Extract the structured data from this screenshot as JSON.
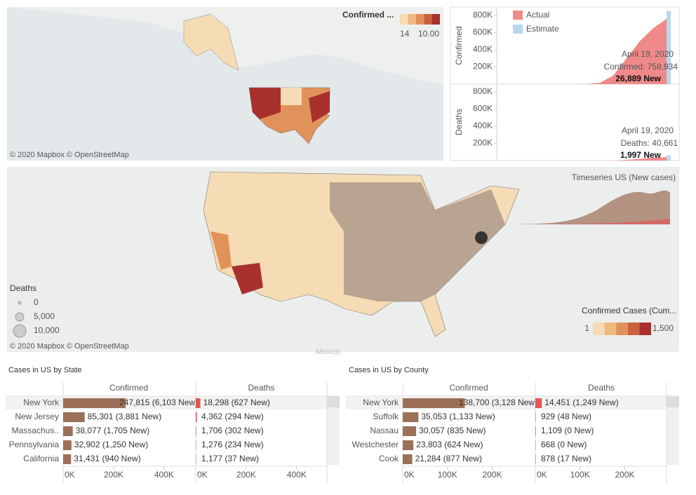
{
  "top_map": {
    "legend_title": "Confirmed ...",
    "legend_min": "14",
    "legend_max": "10.00",
    "colors": [
      "#f5dcb4",
      "#eeb97e",
      "#e0925a",
      "#c9613f",
      "#a8312e"
    ],
    "attribution": "© 2020 Mapbox  © OpenStreetMap"
  },
  "timeseries": {
    "legend": [
      {
        "name": "Actual",
        "color": "#f08a8a"
      },
      {
        "name": "Estimate",
        "color": "#b9d7ee"
      }
    ],
    "charts": [
      {
        "axis_label": "Confirmed",
        "ylim": [
          0,
          880000
        ],
        "yticks": [
          {
            "value": 200000,
            "label": "200K"
          },
          {
            "value": 400000,
            "label": "400K"
          },
          {
            "value": 600000,
            "label": "600K"
          },
          {
            "value": 800000,
            "label": "800K"
          }
        ],
        "categories": [
          null,
          null,
          null,
          null,
          null,
          null,
          null,
          null,
          null,
          null,
          null,
          null,
          null
        ],
        "values": [
          0,
          0,
          0,
          0,
          100,
          500,
          2000,
          15000,
          100000,
          300000,
          500000,
          650000,
          758934
        ],
        "estimate": 850000,
        "tooltip": {
          "date": "April 19, 2020",
          "total": "Confirmed: 758,934",
          "new": "26,889 New"
        }
      },
      {
        "axis_label": "Deaths",
        "ylim": [
          0,
          880000
        ],
        "yticks": [
          {
            "value": 200000,
            "label": "200K"
          },
          {
            "value": 400000,
            "label": "400K"
          },
          {
            "value": 600000,
            "label": "600K"
          },
          {
            "value": 800000,
            "label": "800K"
          }
        ],
        "categories": [
          null,
          null,
          null,
          null,
          null,
          null,
          null,
          null,
          null,
          null,
          null,
          null,
          null
        ],
        "values": [
          0,
          0,
          0,
          0,
          0,
          0,
          10,
          100,
          1500,
          8000,
          20000,
          32000,
          40661
        ],
        "estimate": 60000,
        "tooltip": {
          "date": "April 19, 2020",
          "total": "Deaths: 40,661",
          "new": "1,997 New"
        }
      }
    ]
  },
  "bottom_map": {
    "timeseries_title": "Timeseries US (New cases)",
    "size_legend": {
      "title": "Deaths",
      "labels": [
        "0",
        "5,000",
        "10,000"
      ]
    },
    "color_legend": {
      "title": "Confirmed Cases (Cum...",
      "min": "1",
      "max": "1,500"
    },
    "attribution": "© 2020 Mapbox  © OpenStreetMap",
    "place": "Mexico"
  },
  "tables": [
    {
      "title": "Cases in US by State",
      "columns": [
        "Confirmed",
        "Deaths"
      ],
      "xlim": [
        0,
        520000
      ],
      "xticks": [
        {
          "value": 0,
          "label": "0K"
        },
        {
          "value": 200000,
          "label": "200K"
        },
        {
          "value": 400000,
          "label": "400K"
        }
      ],
      "rows": [
        {
          "name": "New York",
          "confirmed": 247815,
          "confirmed_label": "247,815 (6,103 New)",
          "deaths": 18298,
          "deaths_label": "18,298 (627 New)"
        },
        {
          "name": "New Jersey",
          "confirmed": 85301,
          "confirmed_label": "85,301 (3,881 New)",
          "deaths": 4362,
          "deaths_label": "4,362 (294 New)"
        },
        {
          "name": "Massachus..",
          "confirmed": 38077,
          "confirmed_label": "38,077 (1,705 New)",
          "deaths": 1706,
          "deaths_label": "1,706 (302 New)"
        },
        {
          "name": "Pennsylvania",
          "confirmed": 32902,
          "confirmed_label": "32,902 (1,250 New)",
          "deaths": 1276,
          "deaths_label": "1,276 (234 New)"
        },
        {
          "name": "California",
          "confirmed": 31431,
          "confirmed_label": "31,431 (940 New)",
          "deaths": 1177,
          "deaths_label": "1,177 (37 New)"
        }
      ]
    },
    {
      "title": "Cases in US by County",
      "columns": [
        "Confirmed",
        "Deaths"
      ],
      "xlim": [
        0,
        295000
      ],
      "xticks": [
        {
          "value": 0,
          "label": "0K"
        },
        {
          "value": 100000,
          "label": "100K"
        },
        {
          "value": 200000,
          "label": "200K"
        }
      ],
      "rows": [
        {
          "name": "New York",
          "confirmed": 138700,
          "confirmed_label": "138,700 (3,128 New)",
          "deaths": 14451,
          "deaths_label": "14,451 (1,249 New)"
        },
        {
          "name": "Suffolk",
          "confirmed": 35053,
          "confirmed_label": "35,053 (1,133 New)",
          "deaths": 929,
          "deaths_label": "929 (48 New)"
        },
        {
          "name": "Nassau",
          "confirmed": 30057,
          "confirmed_label": "30,057 (835 New)",
          "deaths": 1109,
          "deaths_label": "1,109 (0 New)"
        },
        {
          "name": "Westchester",
          "confirmed": 23803,
          "confirmed_label": "23,803 (624 New)",
          "deaths": 668,
          "deaths_label": "668 (0 New)"
        },
        {
          "name": "Cook",
          "confirmed": 21284,
          "confirmed_label": "21,284 (877 New)",
          "deaths": 878,
          "deaths_label": "878 (17 New)"
        }
      ]
    }
  ]
}
